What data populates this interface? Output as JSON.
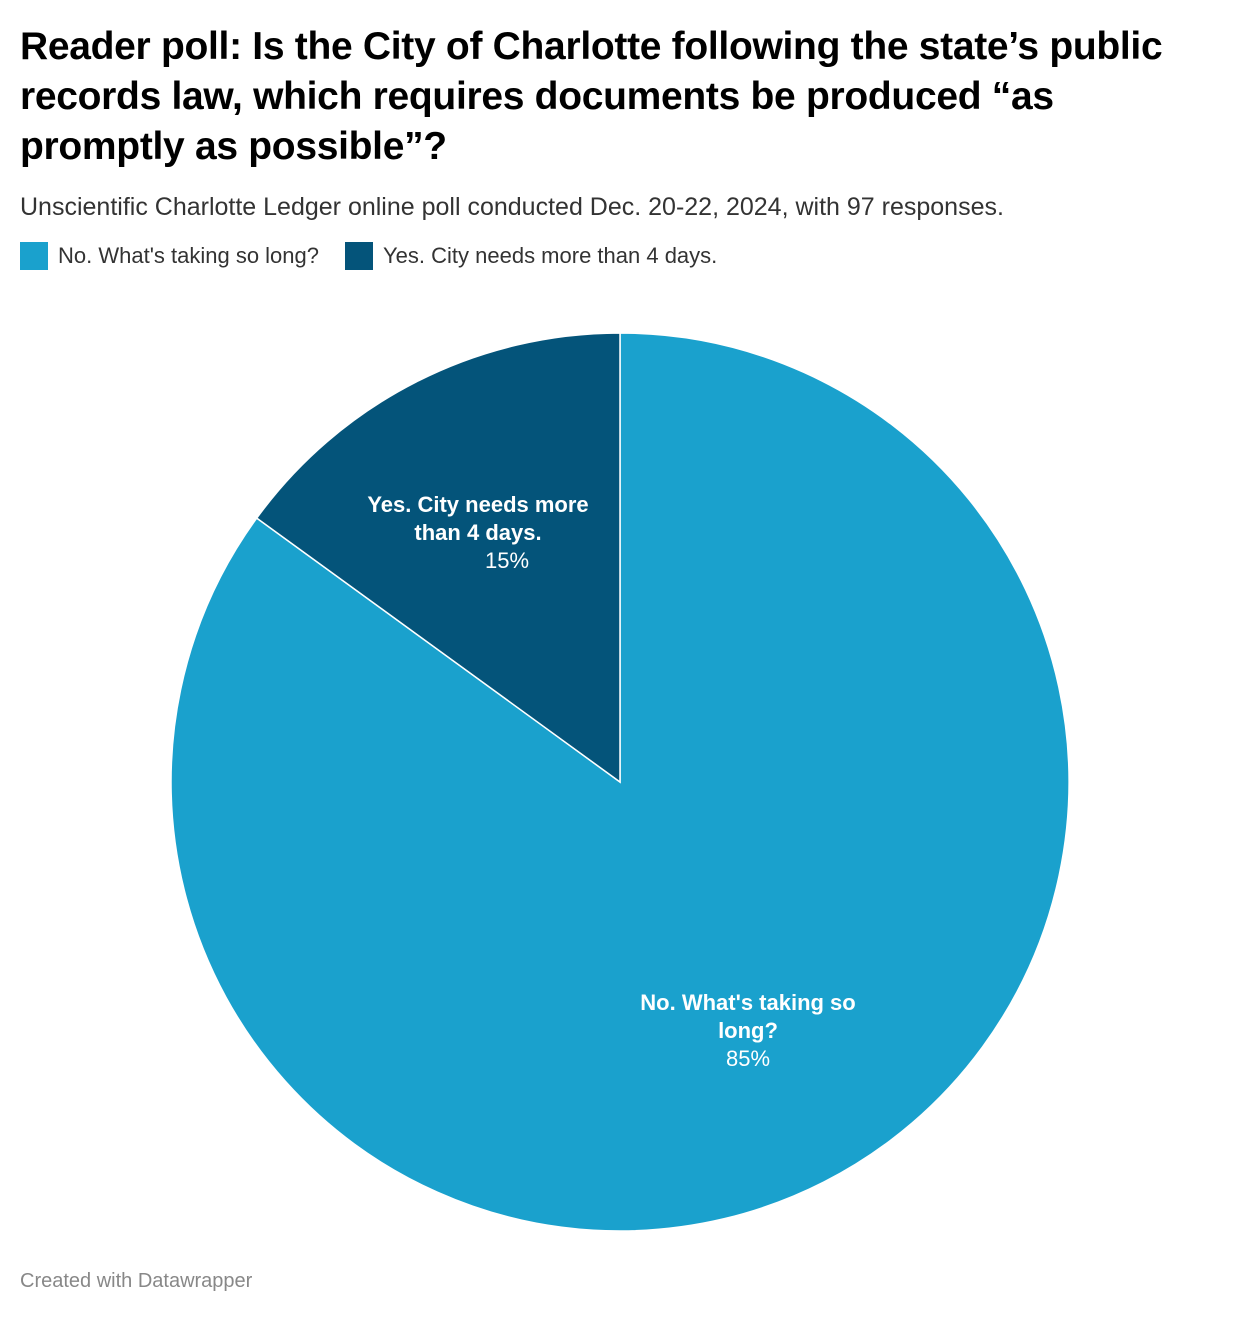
{
  "title": "Reader poll: Is the City of Charlotte following the state’s public records law, which requires documents be produced “as promptly as possible”?",
  "subtitle": "Unscientific Charlotte Ledger online poll conducted Dec. 20-22, 2024, with 97 responses.",
  "footer": "Created with Datawrapper",
  "chart_data": {
    "type": "pie",
    "title": "Reader poll: Is the City of Charlotte following the state’s public records law, which requires documents be produced “as promptly as possible”?",
    "legend_position": "top-left",
    "slices": [
      {
        "label": "No. What's taking so long?",
        "label_lines": [
          "No. What's taking so",
          "long?"
        ],
        "value": 85,
        "value_label": "85%",
        "color": "#1aa1cd"
      },
      {
        "label": "Yes. City needs more than 4 days.",
        "label_lines": [
          "Yes. City needs more",
          "than 4 days."
        ],
        "value": 15,
        "value_label": "15%",
        "color": "#04547a"
      }
    ]
  }
}
